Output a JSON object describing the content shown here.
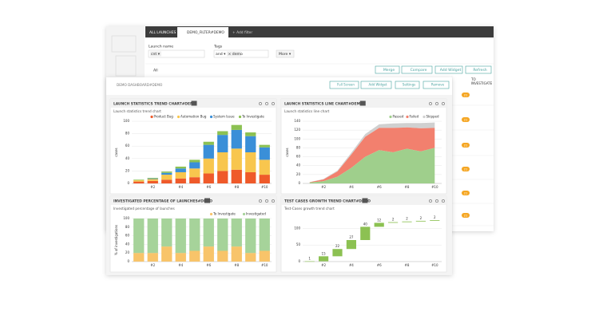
{
  "tabs": [
    "ALL LAUNCHES",
    "DEMO_FILTER#DEMO",
    "+ Add filter"
  ],
  "filter": {
    "launch_name_label": "Launch name",
    "launch_name_value": "cnt ▾",
    "tags_label": "Tags",
    "tags_op": "and ▾",
    "tag": "× demo",
    "more": "More ▾"
  },
  "toolbar": [
    "Merge",
    "Compare",
    "Add Widget",
    "Refresh"
  ],
  "all_label": "All",
  "side": {
    "title": [
      "TO",
      "INVESTIGATE"
    ],
    "badges": [
      "21",
      "21",
      "21",
      "21",
      "21",
      "21"
    ]
  },
  "dashboard": {
    "title": "DEMO DASHBOARD#DEMO",
    "buttons": [
      "Full Screen",
      "Add Widget",
      "Settings",
      "Remove"
    ]
  },
  "chart_data": [
    {
      "type": "bar",
      "stacked": true,
      "title": "LAUNCH STATISTICS TREND CHART#DEMO",
      "subtitle": "Launch statistics trend chart",
      "y_label": "cases",
      "categories": [
        null,
        "#2",
        null,
        "#4",
        null,
        "#6",
        null,
        "#8",
        null,
        "#10"
      ],
      "series": [
        {
          "name": "Product Bug",
          "color": "#ef5a2a",
          "values": [
            3,
            4,
            6,
            8,
            10,
            16,
            20,
            22,
            18,
            14
          ]
        },
        {
          "name": "Automation Bug",
          "color": "#f8c64e",
          "values": [
            2,
            3,
            8,
            10,
            14,
            24,
            30,
            34,
            32,
            24
          ]
        },
        {
          "name": "System Issue",
          "color": "#3a8fd8",
          "values": [
            0,
            1,
            3,
            6,
            10,
            22,
            28,
            30,
            26,
            20
          ]
        },
        {
          "name": "To Investigate",
          "color": "#8cc152",
          "values": [
            1,
            1,
            2,
            3,
            4,
            5,
            6,
            8,
            6,
            4
          ]
        }
      ],
      "ylim": [
        0,
        100
      ],
      "yticks": [
        0,
        20,
        40,
        60,
        80,
        100
      ],
      "grid": true
    },
    {
      "type": "area",
      "stacked": true,
      "title": "LAUNCH STATISTICS LINE CHART#DEMO",
      "subtitle": "Launch statistics line chart",
      "y_label": "cases",
      "categories": [
        null,
        "#2",
        null,
        "#4",
        null,
        "#6",
        null,
        "#8",
        null,
        "#10"
      ],
      "series": [
        {
          "name": "Passed",
          "color": "#9fcf8c",
          "values": [
            2,
            5,
            15,
            35,
            60,
            75,
            70,
            78,
            72,
            80
          ]
        },
        {
          "name": "Failed",
          "color": "#f2806e",
          "values": [
            1,
            4,
            12,
            30,
            45,
            50,
            55,
            48,
            52,
            45
          ]
        },
        {
          "name": "Skipped",
          "color": "#d0d0d0",
          "values": [
            0,
            1,
            2,
            4,
            6,
            8,
            10,
            10,
            12,
            12
          ]
        }
      ],
      "ylim": [
        0,
        140
      ],
      "yticks": [
        0,
        20,
        40,
        60,
        80,
        100,
        120,
        140
      ],
      "grid": true
    },
    {
      "type": "bar",
      "stacked": true,
      "title": "INVESTIGATED PERCENTAGE OF LAUNCHES#DEMO",
      "subtitle": "Investigated percentage of launches",
      "y_label": "% of investigations",
      "categories": [
        null,
        "#2",
        null,
        "#4",
        null,
        "#6",
        null,
        "#8",
        null,
        "#10"
      ],
      "series": [
        {
          "name": "To Investigate",
          "color": "#f8c46a",
          "values": [
            20,
            20,
            35,
            20,
            25,
            35,
            25,
            35,
            20,
            25
          ]
        },
        {
          "name": "Investigated",
          "color": "#a6d39a",
          "values": [
            80,
            80,
            65,
            80,
            75,
            65,
            75,
            65,
            80,
            75
          ]
        }
      ],
      "ylim": [
        0,
        100
      ],
      "yticks": [
        0,
        20,
        40,
        60,
        80,
        100
      ],
      "grid": true
    },
    {
      "type": "waterfall",
      "title": "TEST CASES GROWTH TREND CHART#DEMO",
      "subtitle": "Test-Cases growth trend chart",
      "color": "#8cc152",
      "categories": [
        null,
        "#2",
        null,
        "#4",
        null,
        "#6",
        null,
        "#8",
        null,
        "#10"
      ],
      "values": [
        1,
        15,
        22,
        27,
        40,
        12,
        2,
        2,
        2,
        2
      ],
      "ylim": [
        0,
        130
      ],
      "yticks": [
        0,
        50,
        100
      ],
      "grid": true
    }
  ]
}
